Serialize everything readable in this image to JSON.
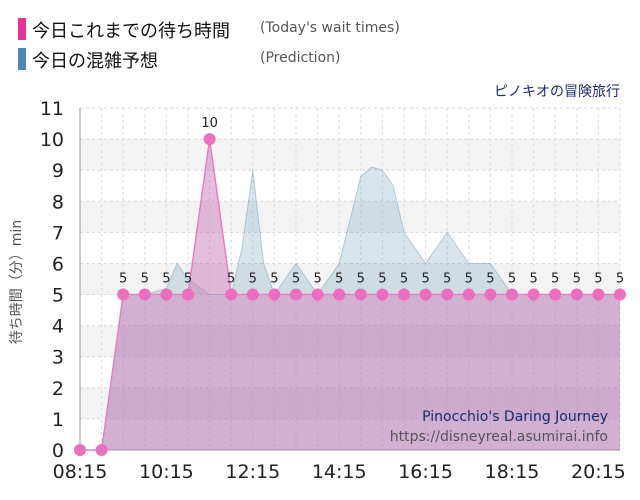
{
  "legend": [
    {
      "label": "今日これまでの待ち時間",
      "note": "(Today's wait times)",
      "color": "#e8338f"
    },
    {
      "label": "今日の混雑予想",
      "note": "(Prediction)",
      "color": "#4f86b5"
    }
  ],
  "attraction_jp": "ピノキオの冒険旅行",
  "attraction_en": "Pinocchio's Daring Journey",
  "source": "https://disneyreal.asumirai.info",
  "chart_data": {
    "type": "area",
    "title": "ピノキオの冒険旅行",
    "ylabel": "待ち時間（分）min",
    "xlabel": "",
    "ylim": [
      0,
      11
    ],
    "yticks": [
      0,
      1,
      2,
      3,
      4,
      5,
      6,
      7,
      8,
      9,
      10,
      11
    ],
    "xticks": [
      "08:15",
      "10:15",
      "12:15",
      "14:15",
      "16:15",
      "18:15",
      "20:15"
    ],
    "grid": true,
    "series": [
      {
        "name": "今日これまでの待ち時間",
        "x": [
          "08:15",
          "08:45",
          "09:15",
          "09:45",
          "10:15",
          "10:45",
          "11:15",
          "11:45",
          "12:15",
          "12:45",
          "13:15",
          "13:45",
          "14:15",
          "14:45",
          "15:15",
          "15:45",
          "16:15",
          "16:45",
          "17:15",
          "17:45",
          "18:15",
          "18:45",
          "19:15",
          "19:45",
          "20:15",
          "20:45"
        ],
        "values": [
          0,
          0,
          5,
          5,
          5,
          5,
          10,
          5,
          5,
          5,
          5,
          5,
          5,
          5,
          5,
          5,
          5,
          5,
          5,
          5,
          5,
          5,
          5,
          5,
          5,
          5
        ],
        "labels": [
          "",
          "",
          "5",
          "5",
          "5",
          "5",
          "10",
          "5",
          "5",
          "5",
          "5",
          "5",
          "5",
          "5",
          "5",
          "5",
          "5",
          "5",
          "5",
          "5",
          "5",
          "5",
          "5",
          "5",
          "5",
          "5"
        ]
      },
      {
        "name": "今日の混雑予想",
        "x": [
          "08:15",
          "08:45",
          "09:15",
          "09:45",
          "10:15",
          "10:30",
          "10:45",
          "11:15",
          "11:45",
          "12:00",
          "12:15",
          "12:30",
          "12:45",
          "13:15",
          "13:30",
          "13:45",
          "14:15",
          "14:45",
          "15:00",
          "15:15",
          "15:30",
          "15:45",
          "16:15",
          "16:30",
          "16:45",
          "17:15",
          "17:45",
          "18:15",
          "18:45",
          "19:15",
          "19:45",
          "20:15",
          "20:45"
        ],
        "values": [
          0,
          0,
          5,
          5,
          5.2,
          6,
          5.5,
          5,
          5,
          6.5,
          9,
          6,
          5,
          6,
          5.5,
          5,
          6,
          8.8,
          9.1,
          9,
          8.5,
          7,
          6,
          6.5,
          7,
          6,
          6,
          5,
          5,
          5,
          5,
          5,
          5
        ]
      }
    ]
  }
}
